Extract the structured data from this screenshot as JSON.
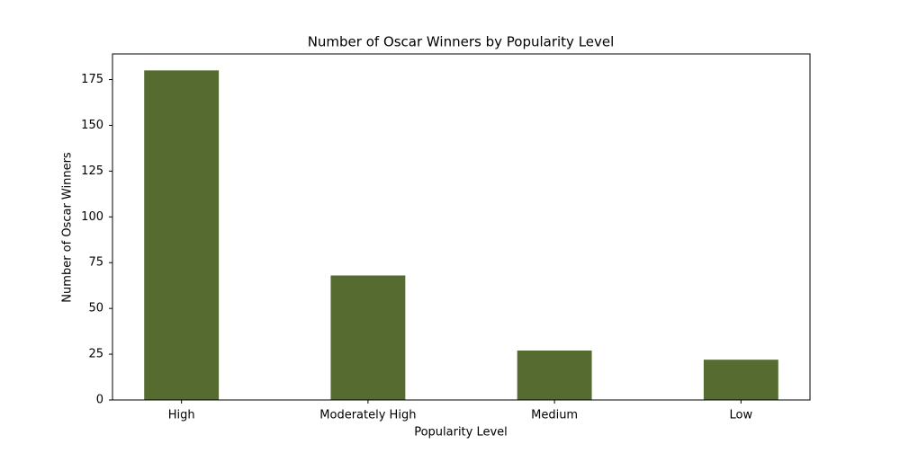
{
  "chart_data": {
    "type": "bar",
    "title": "Number of Oscar Winners by Popularity Level",
    "x_label": "Popularity Level",
    "y_label": "Number of Oscar Winners",
    "categories": [
      "High",
      "Moderately High",
      "Medium",
      "Low"
    ],
    "values": [
      180,
      68,
      27,
      22
    ],
    "color": "#556b2f",
    "ylim": [
      0,
      189
    ],
    "yticks": [
      0,
      25,
      50,
      75,
      100,
      125,
      150,
      175
    ],
    "grid": false
  }
}
